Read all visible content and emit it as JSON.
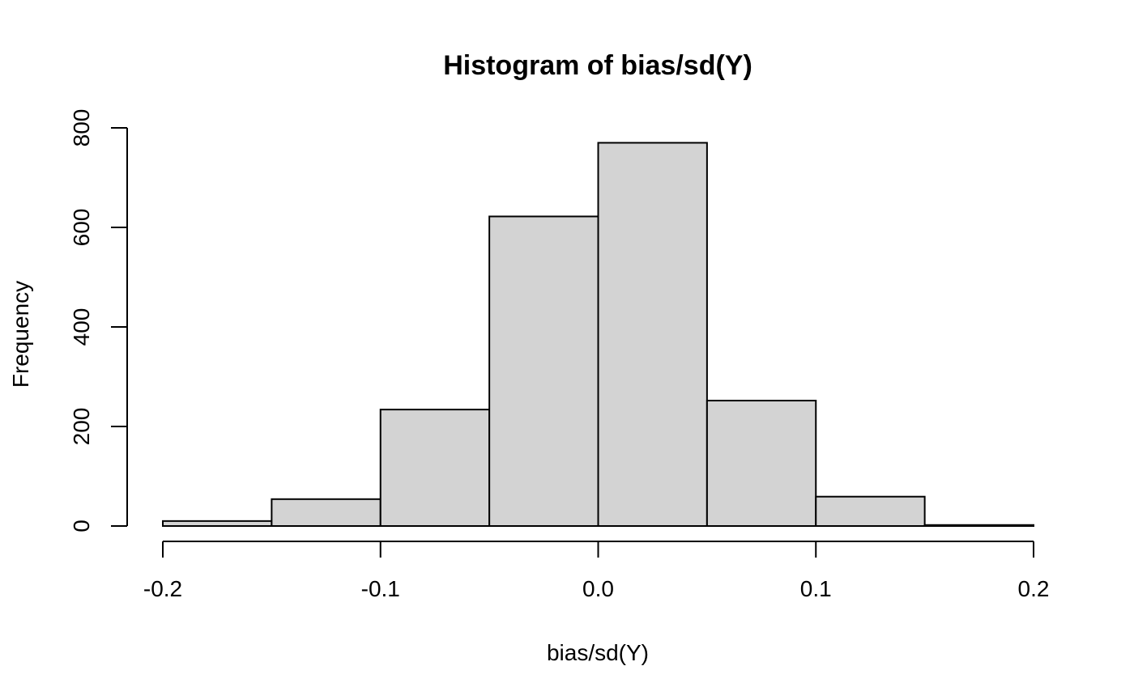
{
  "chart_data": {
    "type": "bar",
    "title": "Histogram of bias/sd(Y)",
    "xlabel": "bias/sd(Y)",
    "ylabel": "Frequency",
    "bin_edges": [
      -0.2,
      -0.15,
      -0.1,
      -0.05,
      0.0,
      0.05,
      0.1,
      0.15,
      0.2
    ],
    "values": [
      10,
      54,
      234,
      622,
      770,
      252,
      59,
      2
    ],
    "xlim": [
      -0.2,
      0.2
    ],
    "ylim": [
      0,
      800
    ],
    "x_ticks": [
      -0.2,
      -0.1,
      0.0,
      0.1,
      0.2
    ],
    "x_tick_labels": [
      "-0.2",
      "-0.1",
      "0.0",
      "0.1",
      "0.2"
    ],
    "y_ticks": [
      0,
      200,
      400,
      600,
      800
    ],
    "y_tick_labels": [
      "0",
      "200",
      "400",
      "600",
      "800"
    ],
    "bar_color": "#d3d3d3",
    "grid": false,
    "legend": "none"
  }
}
